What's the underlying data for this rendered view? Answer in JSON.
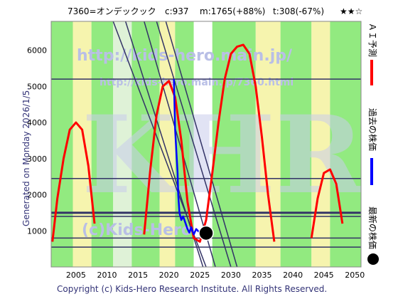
{
  "header": {
    "title": "7360=オンデックック",
    "c_label": "c:937",
    "m_label": "m:1765(+88%)",
    "t_label": "t:308(-67%)",
    "rating": "★★☆"
  },
  "generated": "Generated on Monday 2026/1/5.",
  "footer": "Copyright (c) Kids-Hero Research Institute. All Rights Reserved.",
  "watermark": {
    "url": "http://kids-hero.main.jp/",
    "url2": "http://kids-hero.main.jp/7360.html",
    "copyright": "(c)Kids-Hero",
    "big": "KHRI"
  },
  "legend": {
    "ai_forecast": "ＡＩ予測",
    "past_price": "過去の株価",
    "latest_price": "最新の株価"
  },
  "colors": {
    "ai_forecast": "#ff0000",
    "past_price": "#0000ff",
    "latest_price": "#000000",
    "green_band": "#7fe66a",
    "yellow_band": "#f5f2a0",
    "hline": "#333366"
  },
  "chart_data": {
    "type": "line",
    "xlim": [
      2001,
      2051
    ],
    "ylim": [
      0,
      6800
    ],
    "x_ticks": [
      2005,
      2010,
      2015,
      2020,
      2025,
      2030,
      2035,
      2040,
      2045,
      2050
    ],
    "y_ticks": [
      1000,
      2000,
      3000,
      4000,
      5000,
      6000
    ],
    "horizontal_lines": [
      5200,
      2450,
      1500,
      1400,
      800,
      550
    ],
    "series": [
      {
        "name": "ＡＩ予測",
        "color": "#ff0000",
        "x": [
          2001.2,
          2002,
          2003,
          2004,
          2005,
          2006,
          2007,
          2008,
          2016,
          2017,
          2018,
          2019,
          2020,
          2021,
          2022,
          2023,
          2024,
          2025,
          2026,
          2027,
          2028,
          2029,
          2030,
          2031,
          2032,
          2033,
          2034,
          2035,
          2036,
          2037,
          2043,
          2044,
          2045,
          2046,
          2047,
          2048
        ],
        "y": [
          700,
          1900,
          3000,
          3800,
          4000,
          3800,
          2800,
          1200,
          900,
          2700,
          4200,
          5000,
          5150,
          4700,
          3500,
          1800,
          800,
          700,
          1300,
          2600,
          4000,
          5200,
          5900,
          6100,
          6150,
          5900,
          5000,
          3600,
          2000,
          700,
          800,
          1900,
          2600,
          2700,
          2300,
          1200
        ]
      },
      {
        "name": "過去の株価",
        "color": "#0000ff",
        "x": [
          2020.8,
          2021.0,
          2021.2,
          2021.4,
          2021.5,
          2021.7,
          2022.0,
          2022.3,
          2022.6,
          2023.0,
          2023.3,
          2023.6,
          2024.0,
          2024.4,
          2024.8,
          2025.2,
          2025.6,
          2026.0
        ],
        "y": [
          5200,
          3800,
          3200,
          2600,
          2000,
          1500,
          1300,
          1400,
          1250,
          1050,
          950,
          1100,
          900,
          1050,
          980,
          950,
          940,
          937
        ]
      }
    ],
    "latest_point": {
      "x": 2026.0,
      "y": 937
    }
  }
}
